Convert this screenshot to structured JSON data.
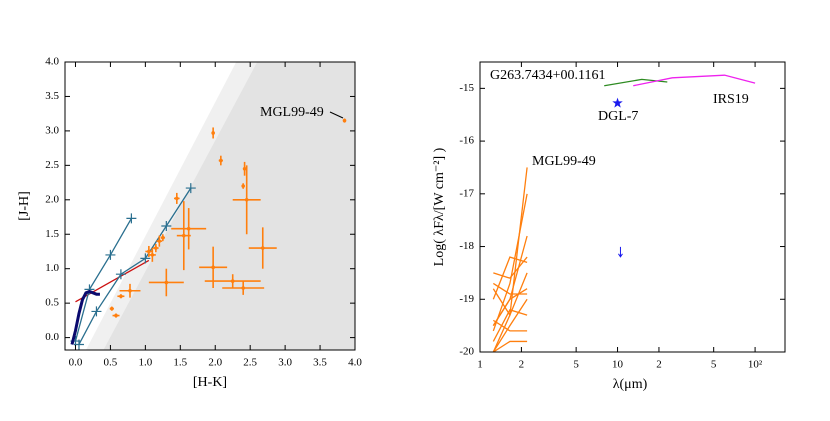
{
  "chart_data": [
    {
      "type": "scatter",
      "xlabel": "[H-K]",
      "ylabel": "[J-H]",
      "xlim": [
        -0.15,
        4
      ],
      "ylim": [
        -0.18,
        4
      ],
      "xticks": [
        {
          "value": 0,
          "label": "0.0"
        },
        0.5,
        {
          "value": 1,
          "label": "1.0"
        },
        1.5,
        {
          "value": 2,
          "label": "2.0"
        },
        2.5,
        {
          "value": 3,
          "label": "3.0"
        },
        3.5,
        {
          "value": 4,
          "label": "4.0"
        }
      ],
      "yticks": [
        {
          "value": 0,
          "label": "0.0"
        },
        0.5,
        {
          "value": 1,
          "label": "1.0"
        },
        1.5,
        {
          "value": 2,
          "label": "2.0"
        },
        2.5,
        {
          "value": 3,
          "label": "3.0"
        },
        3.5,
        {
          "value": 4,
          "label": "4.0"
        }
      ],
      "regions": [
        {
          "color": "#f0f0f0",
          "x": [
            0.15,
            2.3,
            4,
            4,
            0.4
          ],
          "y": [
            -0.18,
            4,
            4,
            -0.18,
            -0.18
          ]
        },
        {
          "color": "#e3e3e3",
          "x": [
            0.4,
            2.6,
            4,
            4
          ],
          "y": [
            -0.18,
            4,
            4,
            -0.18
          ]
        }
      ],
      "annotations": [
        "MGL99-49"
      ],
      "series": [
        {
          "style": "line",
          "color": "#cc1111",
          "x": [
            0,
            1.05
          ],
          "y": [
            0.52,
            1.12
          ]
        },
        {
          "style": "line-plus",
          "color": "#2a6f8f",
          "x": [
            0,
            0.2,
            0.5,
            0.8
          ],
          "y": [
            -0.05,
            0.7,
            1.2,
            1.73
          ]
        },
        {
          "style": "line-plus",
          "color": "#2a6f8f",
          "x": [
            0.05,
            0.3,
            0.65,
            1.0,
            1.3,
            1.65
          ],
          "y": [
            -0.1,
            0.38,
            0.92,
            1.15,
            1.62,
            2.17
          ]
        },
        {
          "style": "line",
          "color": "#0a0a6e",
          "x": [
            -0.05,
            0,
            0.05,
            0.1,
            0.15,
            0.2,
            0.25,
            0.3,
            0.35
          ],
          "y": [
            -0.1,
            0.1,
            0.35,
            0.55,
            0.65,
            0.67,
            0.65,
            0.63,
            0.63
          ]
        },
        {
          "style": "errorbar",
          "color": "#ff7f0e",
          "x": [
            3.85,
            1.97,
            2.08,
            2.4,
            2.45,
            2.42,
            1.45,
            1.62,
            1.55,
            1.3,
            1.97,
            2.25,
            2.4,
            2.68,
            0.78,
            0.65,
            0.52,
            0.58,
            1.1,
            1.2,
            1.15,
            1.25,
            1.05
          ],
          "y": [
            3.15,
            2.97,
            2.57,
            2.2,
            2.0,
            2.45,
            2.02,
            1.58,
            1.48,
            0.8,
            1.02,
            0.82,
            0.72,
            1.3,
            0.68,
            0.6,
            0.42,
            0.32,
            1.2,
            1.4,
            1.3,
            1.45,
            1.25
          ],
          "xerr": [
            0.02,
            0.02,
            0.03,
            0.02,
            0.2,
            0.02,
            0.04,
            0.25,
            0.1,
            0.25,
            0.2,
            0.4,
            0.3,
            0.2,
            0.15,
            0.05,
            0.03,
            0.05,
            0.05,
            0.04,
            0.04,
            0.03,
            0.05
          ],
          "yerr": [
            0.03,
            0.08,
            0.07,
            0.04,
            0.5,
            0.1,
            0.08,
            0.3,
            0.5,
            0.2,
            0.3,
            0.1,
            0.1,
            0.3,
            0.1,
            0.03,
            0.03,
            0.03,
            0.1,
            0.08,
            0.06,
            0.05,
            0.08
          ]
        }
      ]
    },
    {
      "type": "line",
      "xlabel": "λ(μm)",
      "ylabel": "Log( λFλ/[W cm⁻²] )",
      "xlog": true,
      "xlim": [
        1,
        165
      ],
      "ylim": [
        -20,
        -14.5
      ],
      "xticks": [
        1,
        2,
        5,
        10,
        {
          "value": 20,
          "label": "2"
        },
        {
          "value": 50,
          "label": "5"
        },
        {
          "value": 100,
          "label": "10²"
        }
      ],
      "yticks": [
        -20,
        -19,
        -18,
        -17,
        -16,
        -15
      ],
      "annotations": [
        "G263.7434+00.1161",
        "DGL-7",
        "IRS19",
        "MGL99-49"
      ],
      "series": [
        {
          "style": "line",
          "color": "#ff7f0e",
          "x": [
            1.25,
            1.65,
            2.2
          ],
          "y": [
            -20,
            -19.3,
            -16.5
          ]
        },
        {
          "style": "line",
          "color": "#ff7f0e",
          "x": [
            1.25,
            1.65,
            2.2
          ],
          "y": [
            -19.6,
            -18.7,
            -17.0
          ]
        },
        {
          "style": "line",
          "color": "#ff7f0e",
          "x": [
            1.25,
            1.65,
            2.2
          ],
          "y": [
            -19.5,
            -19.0,
            -17.8
          ]
        },
        {
          "style": "line",
          "color": "#ff7f0e",
          "x": [
            1.25,
            1.65,
            2.2
          ],
          "y": [
            -18.5,
            -18.6,
            -18.2
          ]
        },
        {
          "style": "line",
          "color": "#ff7f0e",
          "x": [
            1.25,
            1.65,
            2.2
          ],
          "y": [
            -19.0,
            -18.2,
            -18.3
          ]
        },
        {
          "style": "line",
          "color": "#ff7f0e",
          "x": [
            1.25,
            1.65,
            2.2
          ],
          "y": [
            -18.8,
            -19.3,
            -18.5
          ]
        },
        {
          "style": "line",
          "color": "#ff7f0e",
          "x": [
            1.25,
            1.65,
            2.2
          ],
          "y": [
            -19.5,
            -19.0,
            -18.8
          ]
        },
        {
          "style": "line",
          "color": "#ff7f0e",
          "x": [
            1.25,
            1.65,
            2.2
          ],
          "y": [
            -20,
            -19.5,
            -19.0
          ]
        },
        {
          "style": "line",
          "color": "#ff7f0e",
          "x": [
            1.25,
            1.65,
            2.2
          ],
          "y": [
            -19.8,
            -19.2,
            -19.3
          ]
        },
        {
          "style": "line",
          "color": "#ff7f0e",
          "x": [
            1.25,
            1.65,
            2.2
          ],
          "y": [
            -19.4,
            -19.6,
            -19.6
          ]
        },
        {
          "style": "line",
          "color": "#ff7f0e",
          "x": [
            1.25,
            1.65,
            2.2
          ],
          "y": [
            -20,
            -19.8,
            -19.8
          ]
        },
        {
          "style": "line",
          "color": "#ff7f0e",
          "x": [
            1.25,
            1.65,
            2.2
          ],
          "y": [
            -18.7,
            -18.9,
            -18.9
          ]
        },
        {
          "style": "line",
          "color": "#2e8b22",
          "x": [
            8,
            15,
            23
          ],
          "y": [
            -14.95,
            -14.83,
            -14.88
          ]
        },
        {
          "style": "line",
          "color": "#ee22ee",
          "x": [
            13,
            25,
            60,
            100
          ],
          "y": [
            -14.95,
            -14.8,
            -14.75,
            -14.9
          ]
        },
        {
          "style": "star",
          "color": "#1a1aee",
          "x": [
            10
          ],
          "y": [
            -15.28
          ]
        },
        {
          "style": "upper-limit",
          "color": "#1a1aee",
          "x": [
            10.5
          ],
          "y": [
            -18.1
          ]
        }
      ]
    }
  ]
}
